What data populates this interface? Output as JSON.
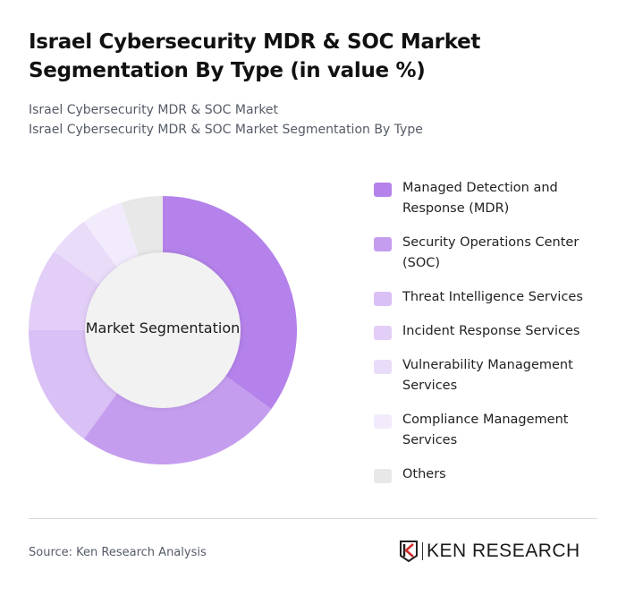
{
  "header": {
    "title": "Israel Cybersecurity MDR & SOC Market Segmentation By Type (in value %)",
    "subtitle_line1": "Israel Cybersecurity MDR & SOC Market",
    "subtitle_line2": "Israel Cybersecurity MDR & SOC Market Segmentation By Type"
  },
  "chart": {
    "center_label": "Market Segmentation"
  },
  "legend": {
    "items": [
      {
        "label": "Managed Detection and Response (MDR)",
        "color": "#b482ea"
      },
      {
        "label": "Security Operations Center (SOC)",
        "color": "#c59def"
      },
      {
        "label": "Threat Intelligence Services",
        "color": "#d9c0f5"
      },
      {
        "label": "Incident Response Services",
        "color": "#e2cef7"
      },
      {
        "label": "Vulnerability Management Services",
        "color": "#e9dcf9"
      },
      {
        "label": "Compliance Management Services",
        "color": "#f2ebfc"
      },
      {
        "label": "Others",
        "color": "#e8e8e8"
      }
    ]
  },
  "footer": {
    "source": "Source: Ken Research Analysis",
    "logo_text": "KEN RESEARCH"
  },
  "chart_data": {
    "type": "pie",
    "subtype": "donut",
    "title": "Israel Cybersecurity MDR & SOC Market Segmentation By Type (in value %)",
    "center_label": "Market Segmentation",
    "categories": [
      "Managed Detection and Response (MDR)",
      "Security Operations Center (SOC)",
      "Threat Intelligence Services",
      "Incident Response Services",
      "Vulnerability Management Services",
      "Compliance Management Services",
      "Others"
    ],
    "values": [
      35,
      25,
      15,
      10,
      5,
      5,
      5
    ],
    "colors": [
      "#b482ea",
      "#c59def",
      "#d9c0f5",
      "#e2cef7",
      "#e9dcf9",
      "#f2ebfc",
      "#e8e8e8"
    ],
    "legend_position": "right",
    "unit": "%"
  }
}
